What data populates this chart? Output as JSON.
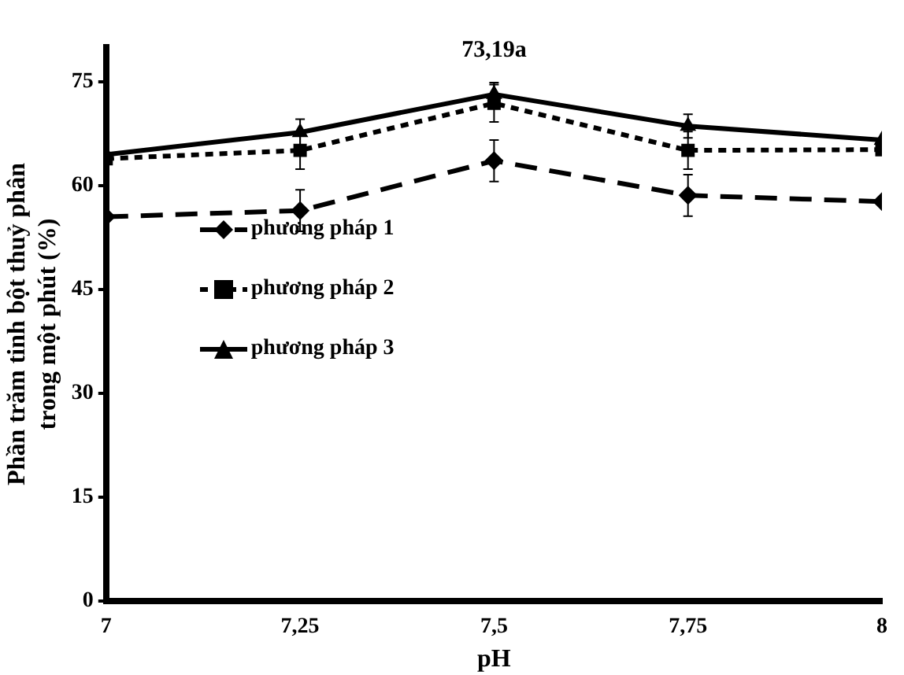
{
  "chart_data": {
    "type": "line",
    "xlabel": "pH",
    "ylabel": "Phần trăm tinh bột thuỷ phân\ntrong một phút (%)",
    "x": [
      7,
      7.25,
      7.5,
      7.75,
      8
    ],
    "xlim": [
      7,
      8
    ],
    "xticks": [
      7,
      {
        "value": 7.25,
        "label": "7,25"
      },
      {
        "value": 7.5,
        "label": "7,5"
      },
      {
        "value": 7.75,
        "label": "7,75"
      },
      8
    ],
    "ylim": [
      0,
      80
    ],
    "yticks": [
      0,
      15,
      30,
      45,
      60,
      75
    ],
    "series": [
      {
        "name": "phương pháp 1",
        "color": "#000000",
        "marker": "diamond",
        "line_style": "dashed",
        "values": [
          55.5,
          56.4,
          63.6,
          58.6,
          57.7
        ],
        "errors": [
          null,
          3,
          3,
          3,
          null
        ]
      },
      {
        "name": "phương pháp 2",
        "color": "#000000",
        "marker": "square",
        "line_style": "dotted",
        "values": [
          63.9,
          65.1,
          71.9,
          65.1,
          65.2
        ],
        "errors": [
          null,
          2.7,
          2.7,
          2.7,
          null
        ]
      },
      {
        "name": "phương pháp 3",
        "color": "#000000",
        "marker": "triangle",
        "line_style": "solid",
        "values": [
          64.5,
          67.7,
          73.2,
          68.6,
          66.6
        ],
        "errors": [
          null,
          1.9,
          1.7,
          1.7,
          null
        ]
      }
    ],
    "annotations": [
      {
        "text": "73,19a",
        "x": 7.5,
        "y": 73.19
      }
    ],
    "legend": "left",
    "grid": false
  }
}
